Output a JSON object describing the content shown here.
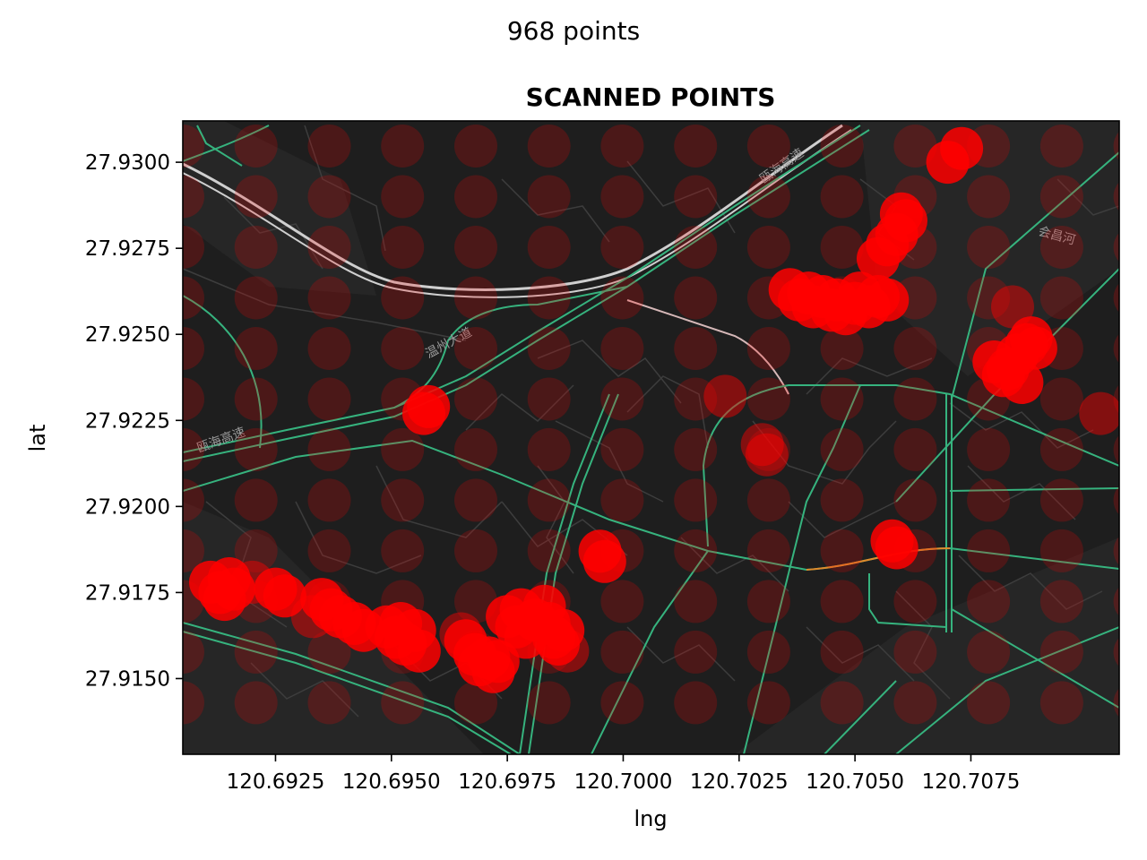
{
  "suptitle": "968 points",
  "chart_data": {
    "type": "scatter",
    "title": "SCANNED POINTS",
    "xlabel": "lng",
    "ylabel": "lat",
    "xlim": [
      120.6905,
      120.7107
    ],
    "ylim": [
      27.9128,
      27.9312
    ],
    "xticks": [
      120.6925,
      120.695,
      120.6975,
      120.7,
      120.7025,
      120.705,
      120.7075
    ],
    "xtick_labels": [
      "120.6925",
      "120.6950",
      "120.6975",
      "120.7000",
      "120.7025",
      "120.7050",
      "120.7075"
    ],
    "yticks": [
      27.915,
      27.9175,
      27.92,
      27.9225,
      27.925,
      27.9275,
      27.93
    ],
    "ytick_labels": [
      "27.9150",
      "27.9175",
      "27.9200",
      "27.9225",
      "27.9250",
      "27.9275",
      "27.9300"
    ],
    "background": "dark street basemap",
    "marker_color": "#ff0000",
    "faint_grid": {
      "x_start": 120.6905,
      "x_step": 0.00158,
      "x_count": 14,
      "y_start": 27.9143,
      "y_step": 0.00147,
      "y_count": 13
    },
    "hot_points": [
      [
        120.6911,
        27.9178
      ],
      [
        120.6913,
        27.9175
      ],
      [
        120.6915,
        27.9179
      ],
      [
        120.6916,
        27.9176
      ],
      [
        120.6914,
        27.9173
      ],
      [
        120.6925,
        27.9176
      ],
      [
        120.6927,
        27.9174
      ],
      [
        120.6935,
        27.9173
      ],
      [
        120.6937,
        27.917
      ],
      [
        120.6939,
        27.9168
      ],
      [
        120.6942,
        27.9166
      ],
      [
        120.6944,
        27.9164
      ],
      [
        120.6949,
        27.9165
      ],
      [
        120.6951,
        27.9162
      ],
      [
        120.6952,
        27.9166
      ],
      [
        120.6953,
        27.916
      ],
      [
        120.6955,
        27.9164
      ],
      [
        120.6956,
        27.9158
      ],
      [
        120.6966,
        27.9161
      ],
      [
        120.6968,
        27.9157
      ],
      [
        120.6969,
        27.9154
      ],
      [
        120.6971,
        27.9156
      ],
      [
        120.6972,
        27.9152
      ],
      [
        120.6973,
        27.9155
      ],
      [
        120.6975,
        27.9168
      ],
      [
        120.6977,
        27.9165
      ],
      [
        120.6978,
        27.917
      ],
      [
        120.6979,
        27.9162
      ],
      [
        120.6981,
        27.9167
      ],
      [
        120.6983,
        27.9171
      ],
      [
        120.6984,
        27.9166
      ],
      [
        120.6985,
        27.9162
      ],
      [
        120.6986,
        27.916
      ],
      [
        120.6987,
        27.9164
      ],
      [
        120.6995,
        27.9187
      ],
      [
        120.6996,
        27.9184
      ],
      [
        120.6957,
        27.9227
      ],
      [
        120.6958,
        27.9229
      ],
      [
        120.7036,
        27.9263
      ],
      [
        120.7038,
        27.926
      ],
      [
        120.704,
        27.9262
      ],
      [
        120.7041,
        27.9258
      ],
      [
        120.7043,
        27.9261
      ],
      [
        120.7045,
        27.9257
      ],
      [
        120.7046,
        27.926
      ],
      [
        120.7048,
        27.9256
      ],
      [
        120.705,
        27.9259
      ],
      [
        120.7051,
        27.9262
      ],
      [
        120.7053,
        27.9258
      ],
      [
        120.7055,
        27.9261
      ],
      [
        120.7057,
        27.926
      ],
      [
        120.7055,
        27.9272
      ],
      [
        120.7057,
        27.9276
      ],
      [
        120.7059,
        27.9279
      ],
      [
        120.7061,
        27.9283
      ],
      [
        120.706,
        27.9285
      ],
      [
        120.707,
        27.93
      ],
      [
        120.7073,
        27.9304
      ],
      [
        120.708,
        27.9242
      ],
      [
        120.7082,
        27.9238
      ],
      [
        120.7083,
        27.924
      ],
      [
        120.7085,
        27.9244
      ],
      [
        120.7087,
        27.9247
      ],
      [
        120.7088,
        27.9249
      ],
      [
        120.7089,
        27.9246
      ],
      [
        120.7086,
        27.9236
      ],
      [
        120.7058,
        27.919
      ],
      [
        120.7059,
        27.9188
      ]
    ],
    "medium_points": [
      [
        120.7022,
        27.9232
      ],
      [
        120.703,
        27.9218
      ],
      [
        120.7031,
        27.9215
      ],
      [
        120.7084,
        27.9258
      ],
      [
        120.7103,
        27.9227
      ],
      [
        120.6965,
        27.9163
      ],
      [
        120.6988,
        27.9158
      ],
      [
        120.692,
        27.9178
      ],
      [
        120.6933,
        27.9168
      ]
    ]
  },
  "map_labels": [
    "瓯海高速",
    "温州大道",
    "瓯海高速",
    "会昌河"
  ]
}
